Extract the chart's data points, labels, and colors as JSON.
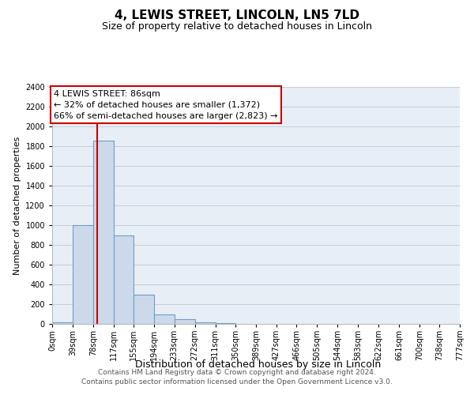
{
  "title": "4, LEWIS STREET, LINCOLN, LN5 7LD",
  "subtitle": "Size of property relative to detached houses in Lincoln",
  "xlabel": "Distribution of detached houses by size in Lincoln",
  "ylabel": "Number of detached properties",
  "bin_edges": [
    0,
    39,
    78,
    117,
    155,
    194,
    233,
    272,
    311,
    350,
    389,
    427,
    466,
    505,
    544,
    583,
    622,
    661,
    700,
    738,
    777
  ],
  "bin_labels": [
    "0sqm",
    "39sqm",
    "78sqm",
    "117sqm",
    "155sqm",
    "194sqm",
    "233sqm",
    "272sqm",
    "311sqm",
    "350sqm",
    "389sqm",
    "427sqm",
    "466sqm",
    "505sqm",
    "544sqm",
    "583sqm",
    "622sqm",
    "661sqm",
    "700sqm",
    "738sqm",
    "777sqm"
  ],
  "bar_heights": [
    20,
    1000,
    1860,
    900,
    300,
    100,
    50,
    20,
    10,
    0,
    0,
    0,
    0,
    0,
    0,
    0,
    0,
    0,
    0,
    0
  ],
  "bar_color": "#ccd9ea",
  "bar_edge_color": "#6b9fc9",
  "red_line_x": 86,
  "ylim": [
    0,
    2400
  ],
  "yticks": [
    0,
    200,
    400,
    600,
    800,
    1000,
    1200,
    1400,
    1600,
    1800,
    2000,
    2200,
    2400
  ],
  "annotation_title": "4 LEWIS STREET: 86sqm",
  "annotation_line1": "← 32% of detached houses are smaller (1,372)",
  "annotation_line2": "66% of semi-detached houses are larger (2,823) →",
  "annotation_box_color": "#ffffff",
  "annotation_box_edge": "#cc0000",
  "footer_line1": "Contains HM Land Registry data © Crown copyright and database right 2024.",
  "footer_line2": "Contains public sector information licensed under the Open Government Licence v3.0.",
  "background_color": "#e8eef6",
  "grid_color": "#c5cdd8",
  "title_fontsize": 11,
  "subtitle_fontsize": 9,
  "xlabel_fontsize": 9,
  "ylabel_fontsize": 8,
  "tick_fontsize": 7,
  "annotation_fontsize": 8,
  "footer_fontsize": 6.5
}
